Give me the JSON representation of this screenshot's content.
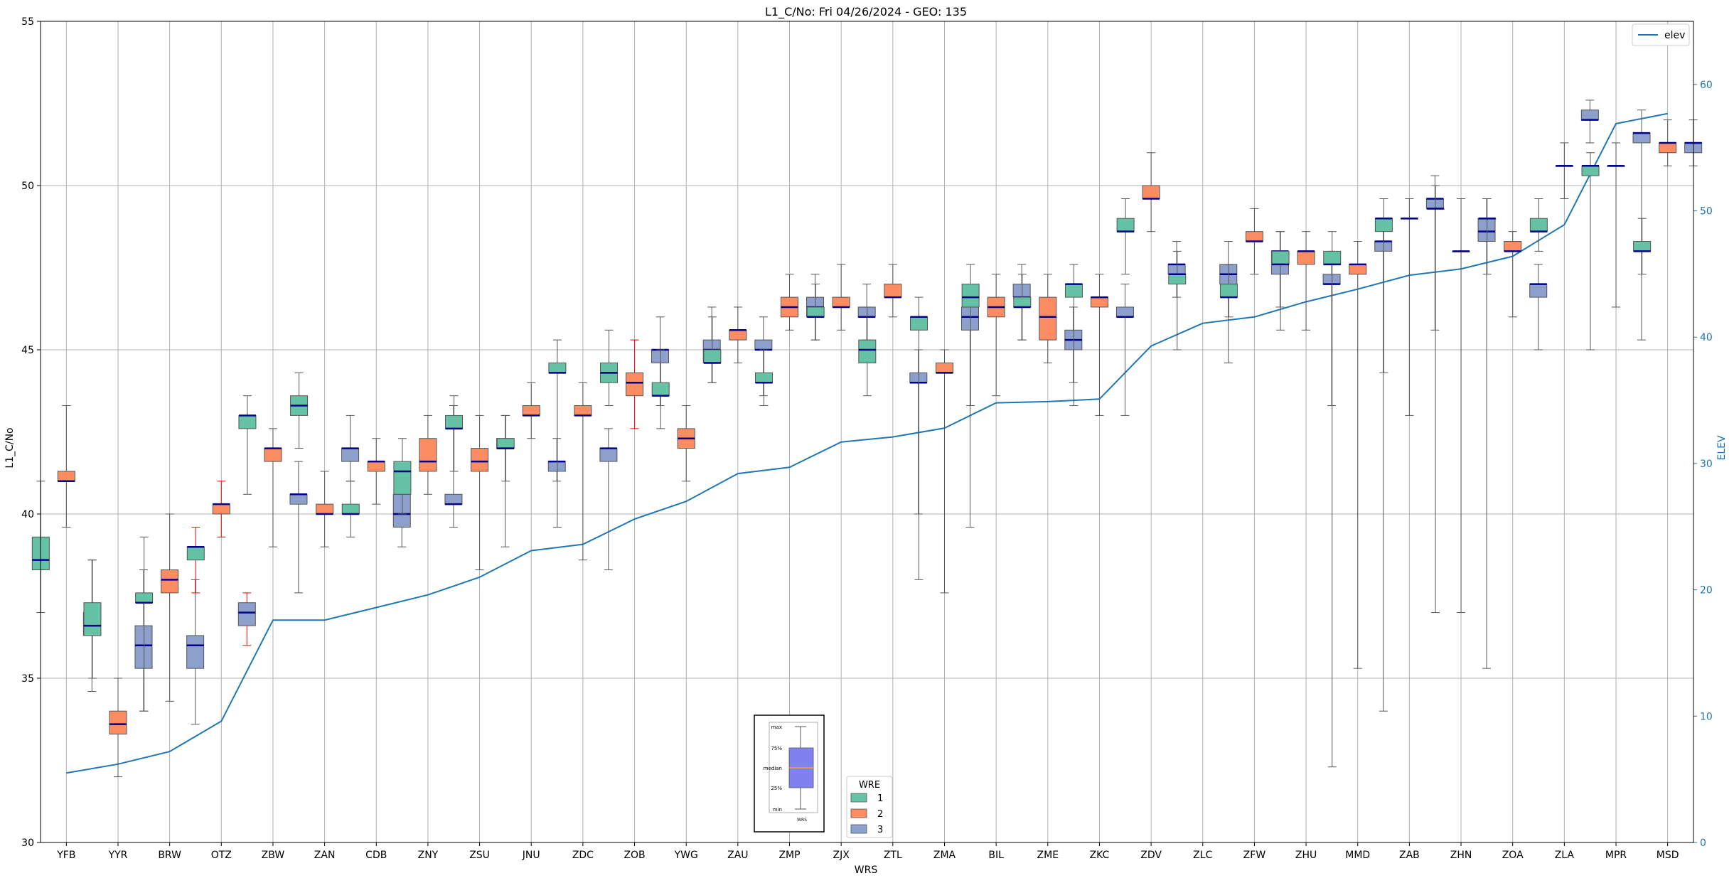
{
  "chart_data": {
    "type": "box",
    "title": "L1_C/No: Fri 04/26/2024 - GEO: 135",
    "xlabel": "WRS",
    "ylabel": "L1_C/No",
    "y2label": "ELEV",
    "ylim": [
      30,
      55
    ],
    "y2lim": [
      0,
      65
    ],
    "yticks": [
      30,
      35,
      40,
      45,
      50,
      55
    ],
    "y2ticks": [
      0,
      10,
      20,
      30,
      40,
      50,
      60
    ],
    "grid": true,
    "categories": [
      "YFB",
      "YYR",
      "BRW",
      "OTZ",
      "ZBW",
      "ZAN",
      "CDB",
      "ZNY",
      "ZSU",
      "JNU",
      "ZDC",
      "ZOB",
      "YWG",
      "ZAU",
      "ZMP",
      "ZJX",
      "ZTL",
      "ZMA",
      "BIL",
      "ZME",
      "ZKC",
      "ZDV",
      "ZLC",
      "ZFW",
      "ZHU",
      "MMD",
      "ZAB",
      "ZHN",
      "ZOA",
      "ZLA",
      "MPR",
      "MSD"
    ],
    "colors": {
      "wre1": "#66c2a5",
      "wre2": "#fc8d62",
      "wre3": "#8da0cb",
      "elev": "#1f77b4",
      "median": "#00008b",
      "whisker_alt": "#ff0000"
    },
    "legend_wre": {
      "title": "WRE",
      "labels": [
        "1",
        "2",
        "3"
      ],
      "placement": "bottom-center"
    },
    "legend_elev": {
      "label": "elev",
      "placement": "top-right"
    },
    "key_box": {
      "labels": [
        "max",
        "75%",
        "median",
        "25%",
        "min"
      ],
      "xlabel": "WRS"
    },
    "boxes": [
      {
        "wrs": "YFB",
        "wre": 1,
        "min": 37.0,
        "q1": 38.3,
        "med": 38.6,
        "q3": 39.3,
        "max": 41.0
      },
      {
        "wrs": "YFB",
        "wre": 2,
        "min": 39.6,
        "q1": 41.0,
        "med": 41.0,
        "q3": 41.3,
        "max": 43.3
      },
      {
        "wrs": "YFB",
        "wre": 3,
        "min": 34.6,
        "q1": 36.3,
        "med": 36.6,
        "q3": 37.0,
        "max": 38.6
      },
      {
        "wrs": "YYR",
        "wre": 1,
        "min": 35.0,
        "q1": 36.3,
        "med": 36.6,
        "q3": 37.3,
        "max": 38.6
      },
      {
        "wrs": "YYR",
        "wre": 2,
        "min": 32.0,
        "q1": 33.3,
        "med": 33.6,
        "q3": 34.0,
        "max": 35.0
      },
      {
        "wrs": "YYR",
        "wre": 3,
        "min": 34.0,
        "q1": 35.3,
        "med": 36.0,
        "q3": 36.6,
        "max": 38.3
      },
      {
        "wrs": "BRW",
        "wre": 1,
        "min": 34.0,
        "q1": 37.3,
        "med": 37.3,
        "q3": 37.6,
        "max": 39.3
      },
      {
        "wrs": "BRW",
        "wre": 2,
        "min": 34.3,
        "q1": 37.6,
        "med": 38.0,
        "q3": 38.3,
        "max": 40.0
      },
      {
        "wrs": "BRW",
        "wre": 3,
        "min": 33.6,
        "q1": 35.3,
        "med": 36.0,
        "q3": 36.3,
        "max": 38.0
      },
      {
        "wrs": "OTZ",
        "wre": 1,
        "min": 37.6,
        "q1": 38.6,
        "med": 39.0,
        "q3": 39.0,
        "max": 39.6,
        "whisker_color": "red"
      },
      {
        "wrs": "OTZ",
        "wre": 2,
        "min": 39.3,
        "q1": 40.0,
        "med": 40.3,
        "q3": 40.3,
        "max": 41.0,
        "whisker_color": "red"
      },
      {
        "wrs": "OTZ",
        "wre": 3,
        "min": 36.0,
        "q1": 36.6,
        "med": 37.0,
        "q3": 37.3,
        "max": 37.6,
        "whisker_color": "red"
      },
      {
        "wrs": "ZBW",
        "wre": 1,
        "min": 40.6,
        "q1": 42.6,
        "med": 43.0,
        "q3": 43.0,
        "max": 43.6
      },
      {
        "wrs": "ZBW",
        "wre": 2,
        "min": 39.0,
        "q1": 41.6,
        "med": 42.0,
        "q3": 42.0,
        "max": 42.6
      },
      {
        "wrs": "ZBW",
        "wre": 3,
        "min": 37.6,
        "q1": 40.3,
        "med": 40.6,
        "q3": 40.6,
        "max": 41.6
      },
      {
        "wrs": "ZAN",
        "wre": 1,
        "min": 42.0,
        "q1": 43.0,
        "med": 43.3,
        "q3": 43.6,
        "max": 44.3
      },
      {
        "wrs": "ZAN",
        "wre": 2,
        "min": 39.0,
        "q1": 40.0,
        "med": 40.0,
        "q3": 40.3,
        "max": 41.3
      },
      {
        "wrs": "ZAN",
        "wre": 3,
        "min": 41.0,
        "q1": 41.6,
        "med": 42.0,
        "q3": 42.0,
        "max": 43.0
      },
      {
        "wrs": "CDB",
        "wre": 1,
        "min": 39.3,
        "q1": 40.0,
        "med": 40.0,
        "q3": 40.3,
        "max": 41.0
      },
      {
        "wrs": "CDB",
        "wre": 2,
        "min": 40.3,
        "q1": 41.3,
        "med": 41.6,
        "q3": 41.6,
        "max": 42.3
      },
      {
        "wrs": "CDB",
        "wre": 3,
        "min": 39.0,
        "q1": 39.6,
        "med": 40.0,
        "q3": 40.6,
        "max": 41.3
      },
      {
        "wrs": "ZNY",
        "wre": 1,
        "min": 40.0,
        "q1": 40.6,
        "med": 41.3,
        "q3": 41.6,
        "max": 42.3
      },
      {
        "wrs": "ZNY",
        "wre": 2,
        "min": 40.6,
        "q1": 41.3,
        "med": 41.6,
        "q3": 42.3,
        "max": 43.0
      },
      {
        "wrs": "ZNY",
        "wre": 3,
        "min": 39.6,
        "q1": 40.3,
        "med": 40.3,
        "q3": 40.6,
        "max": 43.3
      },
      {
        "wrs": "ZSU",
        "wre": 1,
        "min": 41.3,
        "q1": 42.6,
        "med": 42.6,
        "q3": 43.0,
        "max": 43.6
      },
      {
        "wrs": "ZSU",
        "wre": 2,
        "min": 38.3,
        "q1": 41.3,
        "med": 41.6,
        "q3": 42.0,
        "max": 43.0
      },
      {
        "wrs": "ZSU",
        "wre": 3,
        "min": 39.0,
        "q1": 42.0,
        "med": 42.0,
        "q3": 42.3,
        "max": 43.0
      },
      {
        "wrs": "JNU",
        "wre": 1,
        "min": 41.0,
        "q1": 42.0,
        "med": 42.0,
        "q3": 42.3,
        "max": 43.0
      },
      {
        "wrs": "JNU",
        "wre": 2,
        "min": 42.3,
        "q1": 43.0,
        "med": 43.0,
        "q3": 43.3,
        "max": 44.0
      },
      {
        "wrs": "JNU",
        "wre": 3,
        "min": 41.0,
        "q1": 41.3,
        "med": 41.6,
        "q3": 41.6,
        "max": 42.3
      },
      {
        "wrs": "ZDC",
        "wre": 1,
        "min": 39.6,
        "q1": 44.3,
        "med": 44.3,
        "q3": 44.6,
        "max": 45.3
      },
      {
        "wrs": "ZDC",
        "wre": 2,
        "min": 38.6,
        "q1": 43.0,
        "med": 43.0,
        "q3": 43.3,
        "max": 44.0
      },
      {
        "wrs": "ZDC",
        "wre": 3,
        "min": 38.3,
        "q1": 41.6,
        "med": 42.0,
        "q3": 42.0,
        "max": 42.6
      },
      {
        "wrs": "ZOB",
        "wre": 1,
        "min": 43.3,
        "q1": 44.0,
        "med": 44.3,
        "q3": 44.6,
        "max": 45.6
      },
      {
        "wrs": "ZOB",
        "wre": 2,
        "min": 42.6,
        "q1": 43.6,
        "med": 44.0,
        "q3": 44.3,
        "max": 45.3,
        "whisker_color": "red"
      },
      {
        "wrs": "ZOB",
        "wre": 3,
        "min": 43.3,
        "q1": 44.6,
        "med": 45.0,
        "q3": 45.0,
        "max": 46.0
      },
      {
        "wrs": "YWG",
        "wre": 1,
        "min": 42.6,
        "q1": 43.6,
        "med": 43.6,
        "q3": 44.0,
        "max": 45.0
      },
      {
        "wrs": "YWG",
        "wre": 2,
        "min": 41.0,
        "q1": 42.0,
        "med": 42.3,
        "q3": 42.6,
        "max": 43.3
      },
      {
        "wrs": "YWG",
        "wre": 3,
        "min": 44.0,
        "q1": 44.6,
        "med": 45.0,
        "q3": 45.3,
        "max": 46.3
      },
      {
        "wrs": "ZAU",
        "wre": 1,
        "min": 44.0,
        "q1": 44.6,
        "med": 44.6,
        "q3": 45.0,
        "max": 46.0
      },
      {
        "wrs": "ZAU",
        "wre": 2,
        "min": 44.6,
        "q1": 45.3,
        "med": 45.6,
        "q3": 45.6,
        "max": 46.3
      },
      {
        "wrs": "ZAU",
        "wre": 3,
        "min": 43.6,
        "q1": 45.0,
        "med": 45.0,
        "q3": 45.3,
        "max": 46.0
      },
      {
        "wrs": "ZMP",
        "wre": 1,
        "min": 43.3,
        "q1": 44.0,
        "med": 44.0,
        "q3": 44.3,
        "max": 45.0
      },
      {
        "wrs": "ZMP",
        "wre": 2,
        "min": 45.6,
        "q1": 46.0,
        "med": 46.3,
        "q3": 46.6,
        "max": 47.3
      },
      {
        "wrs": "ZMP",
        "wre": 3,
        "min": 45.3,
        "q1": 46.0,
        "med": 46.3,
        "q3": 46.6,
        "max": 47.3
      },
      {
        "wrs": "ZJX",
        "wre": 1,
        "min": 45.3,
        "q1": 46.0,
        "med": 46.0,
        "q3": 46.3,
        "max": 47.0
      },
      {
        "wrs": "ZJX",
        "wre": 2,
        "min": 45.6,
        "q1": 46.3,
        "med": 46.3,
        "q3": 46.6,
        "max": 47.6
      },
      {
        "wrs": "ZJX",
        "wre": 3,
        "min": 45.3,
        "q1": 46.0,
        "med": 46.0,
        "q3": 46.3,
        "max": 47.0
      },
      {
        "wrs": "ZTL",
        "wre": 1,
        "min": 43.6,
        "q1": 44.6,
        "med": 45.0,
        "q3": 45.3,
        "max": 46.3
      },
      {
        "wrs": "ZTL",
        "wre": 2,
        "min": 46.0,
        "q1": 46.6,
        "med": 46.6,
        "q3": 47.0,
        "max": 47.6
      },
      {
        "wrs": "ZTL",
        "wre": 3,
        "min": 40.0,
        "q1": 44.0,
        "med": 44.0,
        "q3": 44.3,
        "max": 45.0
      },
      {
        "wrs": "ZMA",
        "wre": 1,
        "min": 38.0,
        "q1": 45.6,
        "med": 46.0,
        "q3": 46.0,
        "max": 46.6
      },
      {
        "wrs": "ZMA",
        "wre": 2,
        "min": 37.6,
        "q1": 44.3,
        "med": 44.3,
        "q3": 44.6,
        "max": 45.0
      },
      {
        "wrs": "ZMA",
        "wre": 3,
        "min": 39.6,
        "q1": 45.6,
        "med": 46.0,
        "q3": 46.3,
        "max": 46.6
      },
      {
        "wrs": "BIL",
        "wre": 1,
        "min": 43.3,
        "q1": 46.3,
        "med": 46.6,
        "q3": 47.0,
        "max": 47.6
      },
      {
        "wrs": "BIL",
        "wre": 2,
        "min": 43.6,
        "q1": 46.0,
        "med": 46.3,
        "q3": 46.6,
        "max": 47.3
      },
      {
        "wrs": "BIL",
        "wre": 3,
        "min": 45.3,
        "q1": 46.6,
        "med": 46.6,
        "q3": 47.0,
        "max": 47.6
      },
      {
        "wrs": "ZME",
        "wre": 1,
        "min": 45.3,
        "q1": 46.3,
        "med": 46.3,
        "q3": 46.6,
        "max": 47.3
      },
      {
        "wrs": "ZME",
        "wre": 2,
        "min": 44.6,
        "q1": 45.3,
        "med": 46.0,
        "q3": 46.6,
        "max": 47.3
      },
      {
        "wrs": "ZME",
        "wre": 3,
        "min": 44.0,
        "q1": 45.0,
        "med": 45.3,
        "q3": 45.6,
        "max": 46.3
      },
      {
        "wrs": "ZKC",
        "wre": 1,
        "min": 43.3,
        "q1": 46.6,
        "med": 47.0,
        "q3": 47.0,
        "max": 47.6
      },
      {
        "wrs": "ZKC",
        "wre": 2,
        "min": 43.0,
        "q1": 46.3,
        "med": 46.6,
        "q3": 46.6,
        "max": 47.3
      },
      {
        "wrs": "ZKC",
        "wre": 3,
        "min": 43.0,
        "q1": 46.0,
        "med": 46.0,
        "q3": 46.3,
        "max": 47.0
      },
      {
        "wrs": "ZDV",
        "wre": 1,
        "min": 47.3,
        "q1": 48.6,
        "med": 48.6,
        "q3": 49.0,
        "max": 49.6
      },
      {
        "wrs": "ZDV",
        "wre": 2,
        "min": 48.6,
        "q1": 49.6,
        "med": 49.6,
        "q3": 50.0,
        "max": 51.0
      },
      {
        "wrs": "ZDV",
        "wre": 3,
        "min": 46.6,
        "q1": 47.3,
        "med": 47.6,
        "q3": 47.6,
        "max": 48.3
      },
      {
        "wrs": "ZLC",
        "wre": 1,
        "min": 45.0,
        "q1": 47.0,
        "med": 47.3,
        "q3": 47.3,
        "max": 48.0
      },
      {
        "wrs": "ZLC",
        "wre": 3,
        "min": 44.6,
        "q1": 47.0,
        "med": 47.3,
        "q3": 47.6,
        "max": 48.3
      },
      {
        "wrs": "ZFW",
        "wre": 1,
        "min": 46.0,
        "q1": 46.6,
        "med": 46.6,
        "q3": 47.0,
        "max": 47.6
      },
      {
        "wrs": "ZFW",
        "wre": 2,
        "min": 47.3,
        "q1": 48.3,
        "med": 48.3,
        "q3": 48.6,
        "max": 49.3
      },
      {
        "wrs": "ZFW",
        "wre": 3,
        "min": 46.3,
        "q1": 47.3,
        "med": 48.0,
        "q3": 48.0,
        "max": 48.6
      },
      {
        "wrs": "ZHU",
        "wre": 1,
        "min": 45.6,
        "q1": 47.6,
        "med": 47.6,
        "q3": 48.0,
        "max": 48.6
      },
      {
        "wrs": "ZHU",
        "wre": 2,
        "min": 45.6,
        "q1": 47.6,
        "med": 48.0,
        "q3": 48.0,
        "max": 48.6
      },
      {
        "wrs": "ZHU",
        "wre": 3,
        "min": 43.3,
        "q1": 47.0,
        "med": 47.0,
        "q3": 47.3,
        "max": 48.0
      },
      {
        "wrs": "MMD",
        "wre": 1,
        "min": 32.3,
        "q1": 47.6,
        "med": 47.6,
        "q3": 48.0,
        "max": 48.6
      },
      {
        "wrs": "MMD",
        "wre": 2,
        "min": 35.3,
        "q1": 47.3,
        "med": 47.6,
        "q3": 47.6,
        "max": 48.3
      },
      {
        "wrs": "MMD",
        "wre": 3,
        "min": 34.0,
        "q1": 48.0,
        "med": 48.3,
        "q3": 48.3,
        "max": 49.0
      },
      {
        "wrs": "ZAB",
        "wre": 1,
        "min": 44.3,
        "q1": 48.6,
        "med": 49.0,
        "q3": 49.0,
        "max": 49.6
      },
      {
        "wrs": "ZAB",
        "wre": 2,
        "min": 43.0,
        "q1": 49.0,
        "med": 49.0,
        "q3": 49.0,
        "max": 49.6
      },
      {
        "wrs": "ZAB",
        "wre": 3,
        "min": 45.6,
        "q1": 49.3,
        "med": 49.6,
        "q3": 49.6,
        "max": 50.3
      },
      {
        "wrs": "ZHN",
        "wre": 1,
        "min": 37.0,
        "q1": 49.3,
        "med": 49.3,
        "q3": 49.3,
        "max": 50.0
      },
      {
        "wrs": "ZHN",
        "wre": 2,
        "min": 37.0,
        "q1": 48.0,
        "med": 48.0,
        "q3": 48.0,
        "max": 49.6
      },
      {
        "wrs": "ZHN",
        "wre": 3,
        "min": 35.3,
        "q1": 48.3,
        "med": 48.6,
        "q3": 49.0,
        "max": 49.6
      },
      {
        "wrs": "ZOA",
        "wre": 1,
        "min": 47.3,
        "q1": 49.0,
        "med": 49.0,
        "q3": 49.0,
        "max": 49.6
      },
      {
        "wrs": "ZOA",
        "wre": 2,
        "min": 46.0,
        "q1": 48.0,
        "med": 48.0,
        "q3": 48.3,
        "max": 48.6
      },
      {
        "wrs": "ZOA",
        "wre": 3,
        "min": 45.0,
        "q1": 46.6,
        "med": 47.0,
        "q3": 47.0,
        "max": 47.6
      },
      {
        "wrs": "ZLA",
        "wre": 1,
        "min": 48.0,
        "q1": 48.6,
        "med": 48.6,
        "q3": 49.0,
        "max": 49.6
      },
      {
        "wrs": "ZLA",
        "wre": 2,
        "min": 49.6,
        "q1": 50.6,
        "med": 50.6,
        "q3": 50.6,
        "max": 51.3
      },
      {
        "wrs": "ZLA",
        "wre": 3,
        "min": 51.3,
        "q1": 52.0,
        "med": 52.0,
        "q3": 52.3,
        "max": 52.6
      },
      {
        "wrs": "MPR",
        "wre": 1,
        "min": 45.0,
        "q1": 50.3,
        "med": 50.6,
        "q3": 50.6,
        "max": 51.0
      },
      {
        "wrs": "MPR",
        "wre": 2,
        "min": 46.3,
        "q1": 50.6,
        "med": 50.6,
        "q3": 50.6,
        "max": 51.3
      },
      {
        "wrs": "MPR",
        "wre": 3,
        "min": 45.3,
        "q1": 51.3,
        "med": 51.6,
        "q3": 51.6,
        "max": 52.3
      },
      {
        "wrs": "MSD",
        "wre": 1,
        "min": 47.3,
        "q1": 48.0,
        "med": 48.0,
        "q3": 48.3,
        "max": 49.0
      },
      {
        "wrs": "MSD",
        "wre": 2,
        "min": 50.6,
        "q1": 51.0,
        "med": 51.3,
        "q3": 51.3,
        "max": 52.0
      },
      {
        "wrs": "MSD",
        "wre": 3,
        "min": 50.6,
        "q1": 51.0,
        "med": 51.3,
        "q3": 51.3,
        "max": 52.0
      }
    ],
    "elev": {
      "name": "elev",
      "values": [
        5.5,
        6.2,
        7.2,
        9.6,
        17.6,
        17.6,
        18.6,
        19.6,
        21.0,
        23.1,
        23.6,
        25.6,
        27.0,
        29.2,
        29.7,
        31.7,
        32.1,
        32.8,
        34.8,
        34.9,
        35.1,
        39.3,
        41.1,
        41.6,
        42.8,
        43.8,
        44.9,
        45.4,
        46.4,
        48.9,
        56.9,
        57.7
      ]
    }
  }
}
